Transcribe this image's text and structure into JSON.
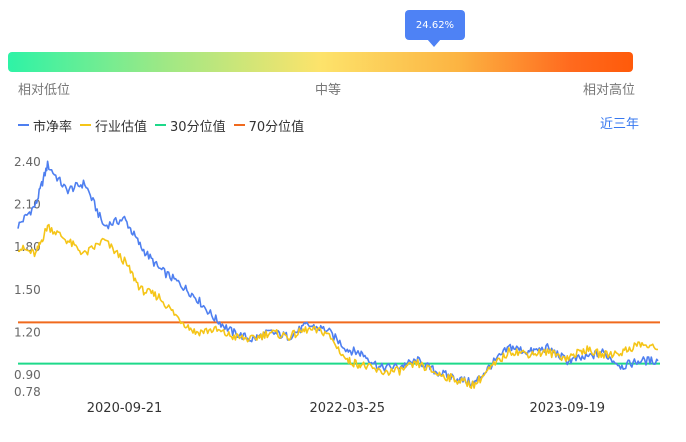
{
  "gauge": {
    "tooltip": "24.62%",
    "percentile": 24.62,
    "left_label": "相对低位",
    "mid_label": "中等",
    "right_label": "相对高位"
  },
  "legend": {
    "items": [
      {
        "label": "市净率",
        "color": "#4e7ff0"
      },
      {
        "label": "行业估值",
        "color": "#f5c518"
      },
      {
        "label": "30分位值",
        "color": "#1ed98a"
      },
      {
        "label": "70分位值",
        "color": "#f06a1e"
      }
    ],
    "range_label": "近三年"
  },
  "chart_data": {
    "type": "line",
    "ylim": [
      0.78,
      2.4
    ],
    "y_ticks": [
      "2.40",
      "2.10",
      "1.80",
      "1.50",
      "1.20",
      "0.90",
      "0.78"
    ],
    "x_ticks": [
      "2020-09-21",
      "2022-03-25",
      "2023-09-19"
    ],
    "hlines": [
      {
        "name": "30分位值",
        "value": 0.98,
        "color": "#1ed98a"
      },
      {
        "name": "70分位值",
        "value": 1.27,
        "color": "#f06a1e"
      }
    ],
    "series": [
      {
        "name": "市净率",
        "color": "#4e7ff0",
        "x": [
          "2020-01-02",
          "2020-02-15",
          "2020-03-15",
          "2020-05-01",
          "2020-06-15",
          "2020-08-01",
          "2020-09-21",
          "2020-11-01",
          "2020-12-15",
          "2021-02-01",
          "2021-03-15",
          "2021-05-01",
          "2021-06-15",
          "2021-08-01",
          "2021-09-15",
          "2021-11-01",
          "2021-12-15",
          "2022-02-01",
          "2022-03-25",
          "2022-05-01",
          "2022-06-15",
          "2022-08-01",
          "2022-09-15",
          "2022-11-01",
          "2022-12-15",
          "2023-02-01",
          "2023-03-15",
          "2023-05-01",
          "2023-06-15",
          "2023-08-01",
          "2023-09-19",
          "2023-11-01",
          "2023-12-15",
          "2024-02-01",
          "2024-03-15",
          "2024-04-30"
        ],
        "values": [
          1.95,
          2.1,
          2.38,
          2.2,
          2.25,
          1.95,
          2.0,
          1.8,
          1.65,
          1.55,
          1.45,
          1.3,
          1.2,
          1.15,
          1.2,
          1.17,
          1.25,
          1.22,
          1.08,
          1.05,
          0.95,
          0.96,
          1.0,
          0.92,
          0.88,
          0.84,
          0.97,
          1.1,
          1.06,
          1.09,
          1.0,
          1.02,
          1.06,
          0.96,
          1.0,
          1.0
        ]
      },
      {
        "name": "行业估值",
        "color": "#f5c518",
        "x": [
          "2020-01-02",
          "2020-02-15",
          "2020-03-15",
          "2020-05-01",
          "2020-06-15",
          "2020-08-01",
          "2020-09-21",
          "2020-11-01",
          "2020-12-15",
          "2021-02-01",
          "2021-03-15",
          "2021-05-01",
          "2021-06-15",
          "2021-08-01",
          "2021-09-15",
          "2021-11-01",
          "2021-12-15",
          "2022-02-01",
          "2022-03-25",
          "2022-05-01",
          "2022-06-15",
          "2022-08-01",
          "2022-09-15",
          "2022-11-01",
          "2022-12-15",
          "2023-02-01",
          "2023-03-15",
          "2023-05-01",
          "2023-06-15",
          "2023-08-01",
          "2023-09-19",
          "2023-11-01",
          "2023-12-15",
          "2024-02-01",
          "2024-03-15",
          "2024-04-30"
        ],
        "values": [
          1.8,
          1.75,
          1.95,
          1.85,
          1.75,
          1.85,
          1.7,
          1.5,
          1.45,
          1.3,
          1.2,
          1.22,
          1.17,
          1.15,
          1.2,
          1.17,
          1.22,
          1.2,
          1.0,
          0.97,
          0.92,
          0.93,
          0.98,
          0.91,
          0.87,
          0.83,
          0.95,
          1.07,
          1.05,
          1.06,
          1.02,
          1.08,
          1.04,
          1.06,
          1.12,
          1.08
        ]
      }
    ]
  }
}
